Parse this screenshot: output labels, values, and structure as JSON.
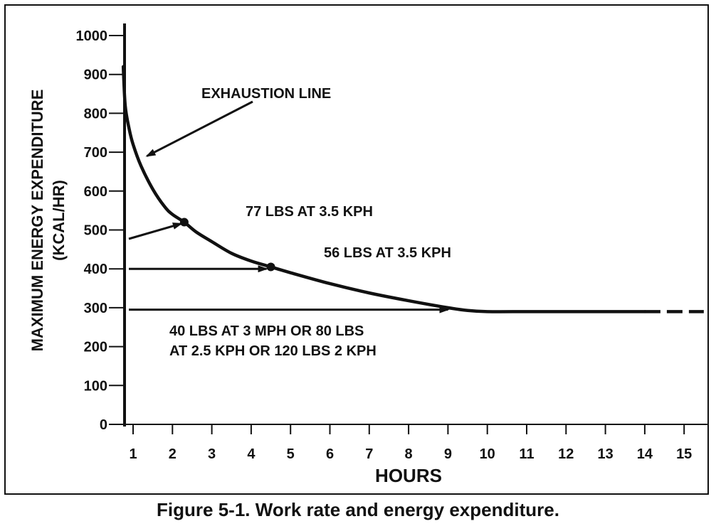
{
  "chart_data": {
    "type": "line",
    "ylabel": "MAXIMUM ENERGY EXPENDITURE",
    "ylabel_unit": "(KCAL/HR)",
    "xlabel": "HOURS",
    "xlim": [
      0.7,
      15.5
    ],
    "ylim": [
      0,
      1000
    ],
    "x_ticks": [
      1,
      2,
      3,
      4,
      5,
      6,
      7,
      8,
      9,
      10,
      11,
      12,
      13,
      14,
      15
    ],
    "y_ticks": [
      0,
      100,
      200,
      300,
      400,
      500,
      600,
      700,
      800,
      900,
      1000
    ],
    "series": [
      {
        "name": "EXHAUSTION LINE",
        "x": [
          0.75,
          0.8,
          0.9,
          1.0,
          1.2,
          1.5,
          1.8,
          2.0,
          2.3,
          2.6,
          3.0,
          3.5,
          4.0,
          4.5,
          5.0,
          6.0,
          7.0,
          8.0,
          9.0,
          9.5,
          10.0,
          11.0,
          12.0,
          13.0,
          14.0
        ],
        "y": [
          920,
          820,
          760,
          720,
          665,
          605,
          560,
          540,
          520,
          495,
          470,
          440,
          420,
          405,
          390,
          362,
          338,
          318,
          300,
          293,
          290,
          290,
          290,
          290,
          290
        ],
        "extension_dashed": {
          "x": [
            14.0,
            15.5
          ],
          "y": [
            290,
            290
          ]
        }
      }
    ],
    "points": [
      {
        "x": 2.3,
        "y": 520
      },
      {
        "x": 4.5,
        "y": 405
      }
    ],
    "annotations": [
      {
        "text": "EXHAUSTION LINE"
      },
      {
        "text": "77 LBS AT 3.5 KPH"
      },
      {
        "text": "56 LBS AT 3.5 KPH"
      },
      {
        "text": "40 LBS AT 3 MPH OR 80 LBS"
      },
      {
        "text": "AT 2.5 KPH OR 120 LBS 2 KPH"
      }
    ],
    "grid": false,
    "caption": "Figure 5-1.  Work rate and energy expenditure."
  }
}
